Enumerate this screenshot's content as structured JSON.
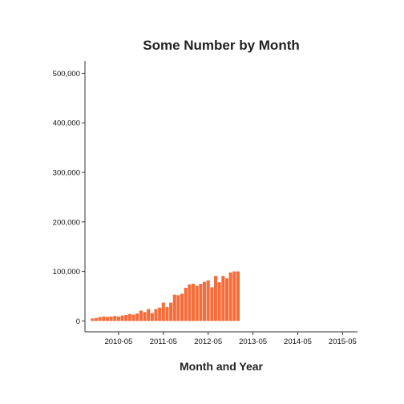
{
  "chart_data": {
    "type": "bar",
    "title": "Some Number by Month",
    "xlabel": "Month and Year",
    "ylabel": "",
    "ylim": [
      -22000,
      525000
    ],
    "xlim": [
      "2009-08",
      "2015-09"
    ],
    "y_ticks": [
      0,
      100000,
      200000,
      300000,
      400000,
      500000
    ],
    "y_tick_labels": [
      "0",
      "100,000",
      "200,000",
      "300,000",
      "400,000",
      "500,000"
    ],
    "x_ticks": [
      "2010-05",
      "2011-05",
      "2012-05",
      "2013-05",
      "2014-05",
      "2015-05"
    ],
    "x_tick_labels": [
      "2010-05",
      "2011-05",
      "2012-05",
      "2013-05",
      "2014-05",
      "2015-05"
    ],
    "grid": false,
    "bar_color": "#F46D3B",
    "x": [
      "2009-10",
      "2009-11",
      "2009-12",
      "2010-01",
      "2010-02",
      "2010-03",
      "2010-04",
      "2010-05",
      "2010-06",
      "2010-07",
      "2010-08",
      "2010-09",
      "2010-10",
      "2010-11",
      "2010-12",
      "2011-01",
      "2011-02",
      "2011-03",
      "2011-04",
      "2011-05",
      "2011-06",
      "2011-07",
      "2011-08",
      "2011-09",
      "2011-10",
      "2011-11",
      "2011-12",
      "2012-01",
      "2012-02",
      "2012-03",
      "2012-04",
      "2012-05",
      "2012-06",
      "2012-07",
      "2012-08",
      "2012-09",
      "2012-10",
      "2012-11",
      "2012-12",
      "2013-01"
    ],
    "values": [
      5000,
      6000,
      8000,
      9000,
      8000,
      9000,
      10000,
      9000,
      11000,
      12000,
      14000,
      13000,
      15000,
      21000,
      18000,
      24000,
      16000,
      24000,
      27000,
      37000,
      28000,
      37000,
      53000,
      52000,
      55000,
      67000,
      74000,
      75000,
      71000,
      75000,
      79000,
      82000,
      68000,
      91000,
      78000,
      91000,
      86000,
      98000,
      100000,
      100000
    ]
  }
}
